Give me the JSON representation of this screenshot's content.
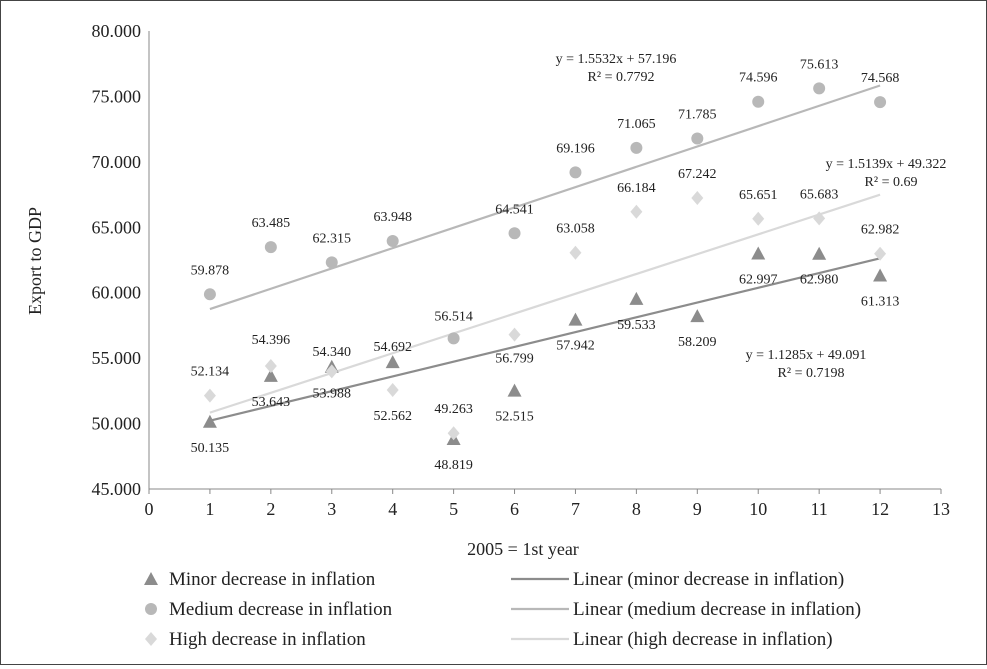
{
  "chart_data": {
    "type": "scatter",
    "title": "",
    "xlabel": "2005 = 1st year",
    "ylabel": "Export to GDP",
    "xlim": [
      0,
      13
    ],
    "ylim": [
      45,
      80
    ],
    "x_ticks": [
      "0",
      "1",
      "2",
      "3",
      "4",
      "5",
      "6",
      "7",
      "8",
      "9",
      "10",
      "11",
      "12",
      "13"
    ],
    "y_ticks": [
      "45.000",
      "50.000",
      "55.000",
      "60.000",
      "65.000",
      "70.000",
      "75.000",
      "80.000"
    ],
    "grid": false,
    "legend_position": "bottom",
    "series": [
      {
        "name": "Minor decrease in inflation",
        "marker": "triangle",
        "color": "#8c8c8c",
        "x": [
          1,
          2,
          3,
          4,
          5,
          6,
          7,
          8,
          9,
          10,
          11,
          12
        ],
        "values": [
          50.135,
          53.643,
          54.34,
          54.692,
          48.819,
          52.515,
          57.942,
          59.533,
          58.209,
          62.997,
          62.98,
          61.313
        ],
        "labels": [
          "50.135",
          "53.643",
          "54.340",
          "54.692",
          "48.819",
          "52.515",
          "57.942",
          "59.533",
          "58.209",
          "62.997",
          "62.980",
          "61.313"
        ]
      },
      {
        "name": "Medium decrease in inflation",
        "marker": "circle",
        "color": "#b8b8b8",
        "x": [
          1,
          2,
          3,
          4,
          5,
          6,
          7,
          8,
          9,
          10,
          11,
          12
        ],
        "values": [
          59.878,
          63.485,
          62.315,
          63.948,
          56.514,
          64.541,
          69.196,
          71.065,
          71.785,
          74.596,
          75.613,
          74.568
        ],
        "labels": [
          "59.878",
          "63.485",
          "62.315",
          "63.948",
          "56.514",
          "64.541",
          "69.196",
          "71.065",
          "71.785",
          "74.596",
          "75.613",
          "74.568"
        ]
      },
      {
        "name": "High decrease in inflation",
        "marker": "diamond",
        "color": "#d9d9d9",
        "x": [
          1,
          2,
          3,
          4,
          5,
          6,
          7,
          8,
          9,
          10,
          11,
          12
        ],
        "values": [
          52.134,
          54.396,
          53.988,
          52.562,
          49.263,
          56.799,
          63.058,
          66.184,
          67.242,
          65.651,
          65.683,
          62.982
        ],
        "labels": [
          "52.134",
          "54.396",
          "53.988",
          "52.562",
          "49.263",
          "56.799",
          "63.058",
          "66.184",
          "67.242",
          "65.651",
          "65.683",
          "62.982"
        ]
      }
    ],
    "trendlines": [
      {
        "name": "Linear (minor decrease in inflation)",
        "color": "#8c8c8c",
        "slope": 1.1285,
        "intercept": 49.091,
        "equation": "y = 1.1285x + 49.091",
        "r2_label": "R² = 0.7198"
      },
      {
        "name": "Linear (medium decrease in inflation)",
        "color": "#b8b8b8",
        "slope": 1.5532,
        "intercept": 57.196,
        "equation": "y = 1.5532x + 57.196",
        "r2_label": "R² = 0.7792"
      },
      {
        "name": "Linear (high decrease in inflation)",
        "color": "#d9d9d9",
        "slope": 1.5139,
        "intercept": 49.322,
        "equation": "y = 1.5139x + 49.322",
        "r2_label": "R² = 0.69"
      }
    ]
  }
}
